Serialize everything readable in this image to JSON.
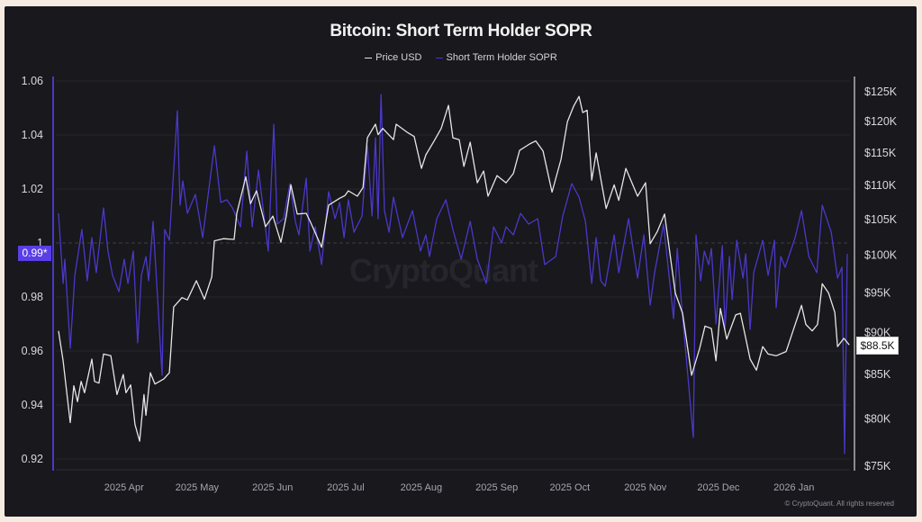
{
  "chart_data": {
    "type": "line",
    "title": "Bitcoin: Short Term Holder SOPR",
    "legend": [
      {
        "label": "Price USD",
        "color": "#e6e6e6"
      },
      {
        "label": "Short Term Holder SOPR",
        "color": "#4b38c9"
      }
    ],
    "x_range_days": [
      0,
      326
    ],
    "x_ticks": [
      {
        "label": "2025 Apr",
        "day": 28
      },
      {
        "label": "2025 May",
        "day": 58
      },
      {
        "label": "2025 Jun",
        "day": 89
      },
      {
        "label": "2025 Jul",
        "day": 119
      },
      {
        "label": "2025 Aug",
        "day": 150
      },
      {
        "label": "2025 Sep",
        "day": 181
      },
      {
        "label": "2025 Oct",
        "day": 211
      },
      {
        "label": "2025 Nov",
        "day": 242
      },
      {
        "label": "2025 Dec",
        "day": 272
      },
      {
        "label": "2026 Jan",
        "day": 303
      }
    ],
    "y_left": {
      "range": [
        0.92,
        1.06
      ],
      "ticks": [
        {
          "label": "1.06",
          "value": 1.06
        },
        {
          "label": "1.04",
          "value": 1.04
        },
        {
          "label": "1.02",
          "value": 1.02
        },
        {
          "label": "1",
          "value": 1.0
        },
        {
          "label": "0.98",
          "value": 0.98
        },
        {
          "label": "0.96",
          "value": 0.96
        },
        {
          "label": "0.94",
          "value": 0.94
        },
        {
          "label": "0.92",
          "value": 0.92
        }
      ],
      "reference_line": 1.0
    },
    "y_right": {
      "scale": "log",
      "range": [
        75,
        125
      ],
      "ticks": [
        {
          "label": "$125K",
          "value": 125
        },
        {
          "label": "$120K",
          "value": 120
        },
        {
          "label": "$115K",
          "value": 115
        },
        {
          "label": "$110K",
          "value": 110
        },
        {
          "label": "$105K",
          "value": 105
        },
        {
          "label": "$100K",
          "value": 100
        },
        {
          "label": "$95K",
          "value": 95
        },
        {
          "label": "$90K",
          "value": 90
        },
        {
          "label": "$85K",
          "value": 85
        },
        {
          "label": "$80K",
          "value": 80
        },
        {
          "label": "$75K",
          "value": 75
        }
      ]
    },
    "series": [
      {
        "name": "Price USD",
        "axis": "right",
        "color": "#e6e6e6",
        "points": [
          [
            1.1,
            90.2
          ],
          [
            3.0,
            86.6
          ],
          [
            5.9,
            79.6
          ],
          [
            7.4,
            83.7
          ],
          [
            8.9,
            81.9
          ],
          [
            10.4,
            84.2
          ],
          [
            11.8,
            82.9
          ],
          [
            14.8,
            86.8
          ],
          [
            15.9,
            84.2
          ],
          [
            17.7,
            84.0
          ],
          [
            19.6,
            87.4
          ],
          [
            22.6,
            87.2
          ],
          [
            25.1,
            82.7
          ],
          [
            27.7,
            85.0
          ],
          [
            28.8,
            82.9
          ],
          [
            30.7,
            83.8
          ],
          [
            32.5,
            79.4
          ],
          [
            34.4,
            77.6
          ],
          [
            36.2,
            82.7
          ],
          [
            37.0,
            80.4
          ],
          [
            38.8,
            85.2
          ],
          [
            40.7,
            83.9
          ],
          [
            44.4,
            84.5
          ],
          [
            46.6,
            85.2
          ],
          [
            48.4,
            93.2
          ],
          [
            51.8,
            94.4
          ],
          [
            54.0,
            94.1
          ],
          [
            57.7,
            96.6
          ],
          [
            61.0,
            94.2
          ],
          [
            64.0,
            97.1
          ],
          [
            65.1,
            102.0
          ],
          [
            68.8,
            102.3
          ],
          [
            73.2,
            102.2
          ],
          [
            74.3,
            105.9
          ],
          [
            78.0,
            111.3
          ],
          [
            79.9,
            107.3
          ],
          [
            82.4,
            109.2
          ],
          [
            86.1,
            104.0
          ],
          [
            89.1,
            105.5
          ],
          [
            92.4,
            101.8
          ],
          [
            94.6,
            105.5
          ],
          [
            96.5,
            110.1
          ],
          [
            99.1,
            105.8
          ],
          [
            102.8,
            105.9
          ],
          [
            104.6,
            104.6
          ],
          [
            109.1,
            101.1
          ],
          [
            112.0,
            107.1
          ],
          [
            116.5,
            108.1
          ],
          [
            118.7,
            108.5
          ],
          [
            120.1,
            109.2
          ],
          [
            123.8,
            108.4
          ],
          [
            126.1,
            109.7
          ],
          [
            127.9,
            117.4
          ],
          [
            131.2,
            119.6
          ],
          [
            132.3,
            117.9
          ],
          [
            134.2,
            118.9
          ],
          [
            138.6,
            117.1
          ],
          [
            139.7,
            119.6
          ],
          [
            144.2,
            118.3
          ],
          [
            147.1,
            117.6
          ],
          [
            150.1,
            112.6
          ],
          [
            151.9,
            114.7
          ],
          [
            155.3,
            116.9
          ],
          [
            158.2,
            118.9
          ],
          [
            161.2,
            122.7
          ],
          [
            163.0,
            117.4
          ],
          [
            165.6,
            117.1
          ],
          [
            167.5,
            112.9
          ],
          [
            170.1,
            116.7
          ],
          [
            173.0,
            110.4
          ],
          [
            175.6,
            112.2
          ],
          [
            177.4,
            108.4
          ],
          [
            181.1,
            111.5
          ],
          [
            184.8,
            110.4
          ],
          [
            187.8,
            111.8
          ],
          [
            190.4,
            115.4
          ],
          [
            194.5,
            116.4
          ],
          [
            197.0,
            116.9
          ],
          [
            200.0,
            115.3
          ],
          [
            203.7,
            109.0
          ],
          [
            207.4,
            114.0
          ],
          [
            210.0,
            120.0
          ],
          [
            212.6,
            122.6
          ],
          [
            214.8,
            124.2
          ],
          [
            216.3,
            121.5
          ],
          [
            218.1,
            121.9
          ],
          [
            220.0,
            110.8
          ],
          [
            221.8,
            115.0
          ],
          [
            225.9,
            106.6
          ],
          [
            229.2,
            110.1
          ],
          [
            231.1,
            107.8
          ],
          [
            234.0,
            112.6
          ],
          [
            238.8,
            108.4
          ],
          [
            242.1,
            110.4
          ],
          [
            244.0,
            101.6
          ],
          [
            246.9,
            103.3
          ],
          [
            249.9,
            105.8
          ],
          [
            254.3,
            95.0
          ],
          [
            257.3,
            92.4
          ],
          [
            261.0,
            84.9
          ],
          [
            264.3,
            88.1
          ],
          [
            266.5,
            90.8
          ],
          [
            269.1,
            90.5
          ],
          [
            271.0,
            86.6
          ],
          [
            272.8,
            93.0
          ],
          [
            275.4,
            89.2
          ],
          [
            279.1,
            92.2
          ],
          [
            281.0,
            92.4
          ],
          [
            282.8,
            89.9
          ],
          [
            285.0,
            86.8
          ],
          [
            287.6,
            85.5
          ],
          [
            290.2,
            88.3
          ],
          [
            292.4,
            87.4
          ],
          [
            295.7,
            87.2
          ],
          [
            299.8,
            87.7
          ],
          [
            306.1,
            93.4
          ],
          [
            307.9,
            91.0
          ],
          [
            310.5,
            90.2
          ],
          [
            312.7,
            91.0
          ],
          [
            314.6,
            96.2
          ],
          [
            317.2,
            95.0
          ],
          [
            319.8,
            92.5
          ],
          [
            320.9,
            88.3
          ],
          [
            323.5,
            89.3
          ],
          [
            325.7,
            88.5
          ]
        ]
      },
      {
        "name": "Short Term Holder SOPR",
        "axis": "left",
        "color": "#4b38c9",
        "points": [
          [
            1.1,
            1.011
          ],
          [
            3.0,
            0.985
          ],
          [
            3.7,
            0.994
          ],
          [
            5.9,
            0.961
          ],
          [
            7.8,
            0.988
          ],
          [
            10.7,
            1.005
          ],
          [
            12.9,
            0.986
          ],
          [
            14.8,
            1.002
          ],
          [
            16.6,
            0.989
          ],
          [
            19.6,
            1.013
          ],
          [
            21.4,
            0.997
          ],
          [
            23.3,
            0.988
          ],
          [
            25.9,
            0.982
          ],
          [
            28.1,
            0.994
          ],
          [
            29.6,
            0.985
          ],
          [
            31.8,
            0.997
          ],
          [
            33.6,
            0.963
          ],
          [
            35.1,
            0.988
          ],
          [
            37.0,
            0.995
          ],
          [
            38.1,
            0.986
          ],
          [
            39.9,
            1.008
          ],
          [
            41.8,
            0.979
          ],
          [
            43.6,
            0.951
          ],
          [
            44.7,
            1.005
          ],
          [
            46.6,
            1.001
          ],
          [
            49.9,
            1.049
          ],
          [
            51.0,
            1.014
          ],
          [
            52.1,
            1.023
          ],
          [
            54.0,
            1.011
          ],
          [
            57.3,
            1.018
          ],
          [
            60.3,
            1.002
          ],
          [
            65.1,
            1.036
          ],
          [
            67.7,
            1.015
          ],
          [
            70.2,
            1.016
          ],
          [
            72.5,
            1.013
          ],
          [
            75.8,
            1.006
          ],
          [
            78.4,
            1.034
          ],
          [
            80.6,
            1.006
          ],
          [
            83.2,
            1.027
          ],
          [
            87.2,
            0.997
          ],
          [
            89.5,
            1.044
          ],
          [
            90.9,
            1.007
          ],
          [
            93.5,
            1.009
          ],
          [
            96.1,
            1.022
          ],
          [
            98.3,
            1.008
          ],
          [
            99.8,
            1.003
          ],
          [
            102.8,
            1.024
          ],
          [
            104.3,
            0.997
          ],
          [
            106.5,
            1.006
          ],
          [
            109.1,
            0.992
          ],
          [
            112.0,
            1.019
          ],
          [
            114.6,
            1.009
          ],
          [
            116.5,
            1.015
          ],
          [
            118.3,
            1.002
          ],
          [
            120.1,
            1.016
          ],
          [
            122.4,
            1.004
          ],
          [
            125.7,
            1.01
          ],
          [
            127.9,
            1.036
          ],
          [
            129.8,
            1.01
          ],
          [
            131.2,
            1.039
          ],
          [
            132.3,
            1.009
          ],
          [
            133.5,
            1.055
          ],
          [
            134.9,
            1.012
          ],
          [
            136.8,
            1.004
          ],
          [
            138.6,
            1.017
          ],
          [
            142.3,
            1.002
          ],
          [
            146.4,
            1.012
          ],
          [
            149.7,
            0.997
          ],
          [
            151.9,
            1.003
          ],
          [
            153.4,
            0.995
          ],
          [
            156.4,
            1.009
          ],
          [
            160.1,
            1.016
          ],
          [
            163.0,
            1.005
          ],
          [
            166.4,
            0.994
          ],
          [
            170.1,
            1.008
          ],
          [
            173.0,
            0.994
          ],
          [
            176.7,
            0.985
          ],
          [
            179.7,
            1.006
          ],
          [
            183.0,
            1.0
          ],
          [
            184.8,
            1.006
          ],
          [
            187.8,
            1.003
          ],
          [
            190.8,
            1.011
          ],
          [
            194.1,
            1.007
          ],
          [
            197.8,
            1.009
          ],
          [
            200.7,
            0.992
          ],
          [
            205.2,
            0.995
          ],
          [
            208.1,
            1.01
          ],
          [
            211.8,
            1.022
          ],
          [
            214.8,
            1.017
          ],
          [
            217.4,
            1.008
          ],
          [
            220.0,
            0.985
          ],
          [
            221.8,
            1.002
          ],
          [
            223.7,
            0.986
          ],
          [
            225.5,
            0.984
          ],
          [
            229.2,
            1.003
          ],
          [
            231.1,
            0.989
          ],
          [
            235.1,
            1.009
          ],
          [
            238.8,
            0.987
          ],
          [
            241.4,
            1.003
          ],
          [
            244.0,
            0.977
          ],
          [
            245.8,
            0.989
          ],
          [
            249.5,
            1.007
          ],
          [
            253.6,
            0.972
          ],
          [
            255.1,
            0.998
          ],
          [
            256.9,
            0.977
          ],
          [
            261.7,
            0.928
          ],
          [
            262.8,
            1.003
          ],
          [
            264.7,
            0.986
          ],
          [
            266.2,
            0.997
          ],
          [
            268.0,
            0.992
          ],
          [
            269.1,
            0.998
          ],
          [
            271.0,
            0.97
          ],
          [
            273.6,
            0.999
          ],
          [
            274.7,
            0.968
          ],
          [
            276.5,
            0.995
          ],
          [
            277.6,
            0.979
          ],
          [
            279.5,
            1.001
          ],
          [
            282.1,
            0.987
          ],
          [
            283.2,
            0.996
          ],
          [
            285.0,
            0.968
          ],
          [
            286.5,
            0.989
          ],
          [
            290.2,
            1.001
          ],
          [
            292.4,
            0.988
          ],
          [
            295.0,
            1.001
          ],
          [
            295.7,
            0.976
          ],
          [
            297.6,
            0.995
          ],
          [
            299.4,
            0.991
          ],
          [
            303.5,
            1.002
          ],
          [
            306.1,
            1.012
          ],
          [
            309.1,
            0.995
          ],
          [
            312.4,
            0.989
          ],
          [
            314.6,
            1.014
          ],
          [
            318.3,
            1.004
          ],
          [
            320.9,
            0.987
          ],
          [
            322.7,
            0.991
          ],
          [
            323.8,
            0.922
          ],
          [
            324.9,
            0.996
          ]
        ]
      }
    ],
    "current_value_labels": {
      "sopr": "0.99*",
      "price": "$88.5K"
    },
    "watermark": "CryptoQuant",
    "copyright": "© CryptoQuant. All rights reserved"
  }
}
